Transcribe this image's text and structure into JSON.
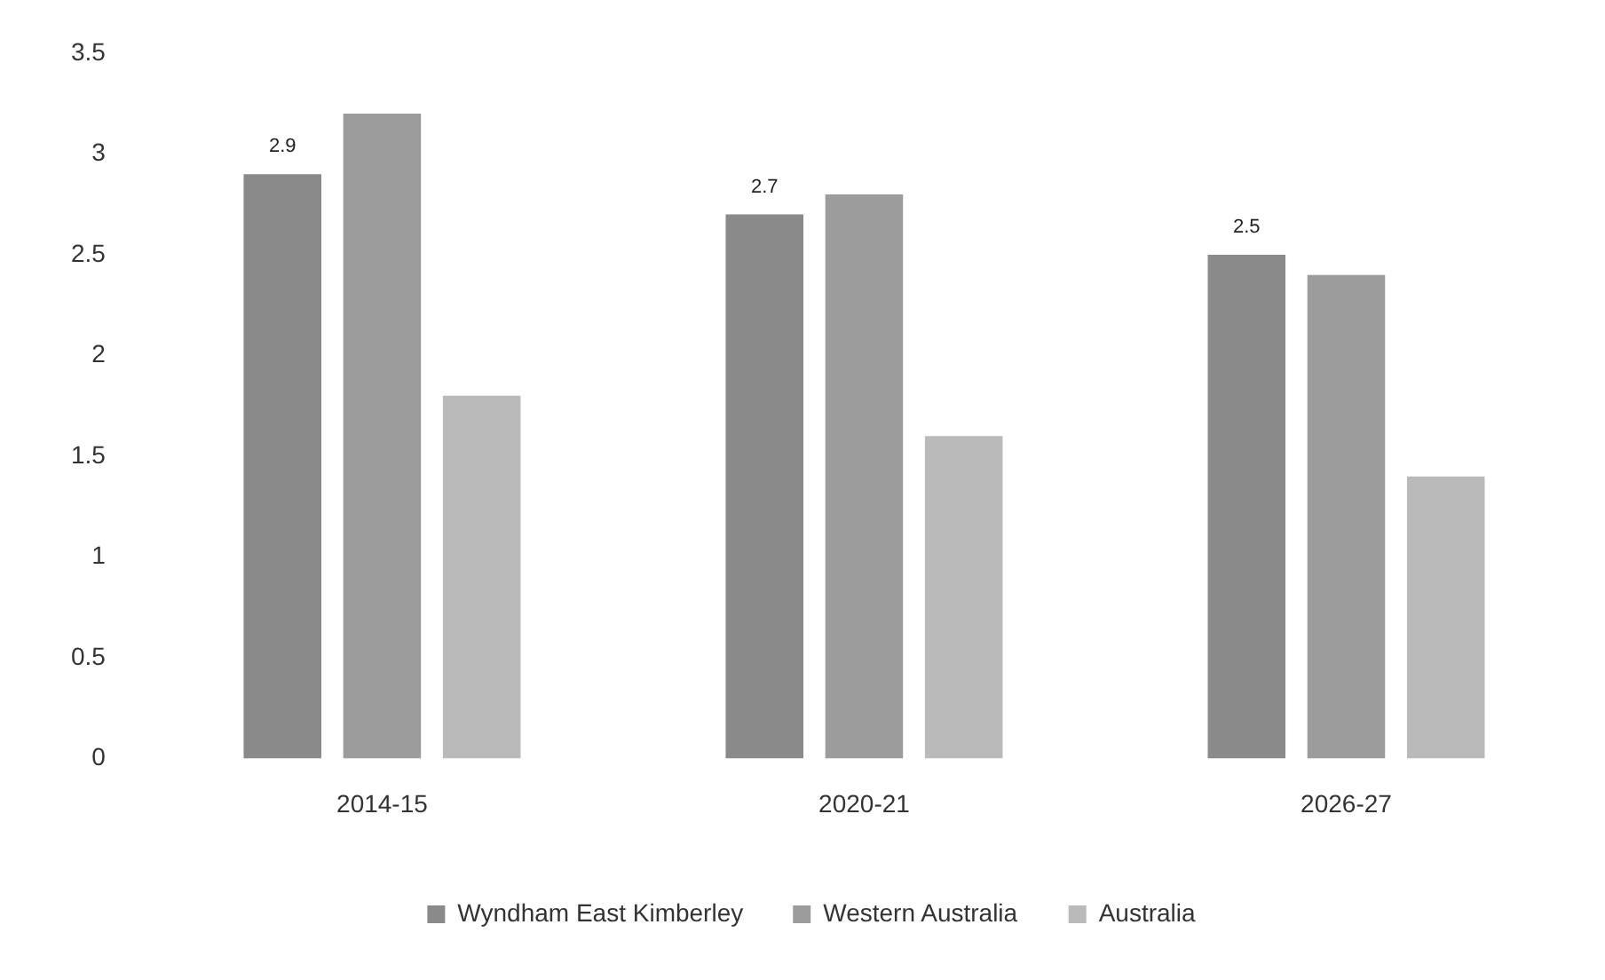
{
  "chart_data": {
    "type": "bar",
    "categories": [
      "2014-15",
      "2020-21",
      "2026-27"
    ],
    "series": [
      {
        "name": "Wyndham East Kimberley",
        "color": "#8a8a8a",
        "values": [
          2.9,
          2.7,
          2.5
        ],
        "value_labels": [
          "2.9",
          "2.7",
          "2.5"
        ]
      },
      {
        "name": "Western Australia",
        "color": "#9c9c9c",
        "values": [
          3.2,
          2.8,
          2.4
        ]
      },
      {
        "name": "Australia",
        "color": "#bababa",
        "values": [
          1.8,
          1.6,
          1.4
        ]
      }
    ],
    "ylim": [
      0,
      3.5
    ],
    "yticks": [
      0,
      0.5,
      1,
      1.5,
      2,
      2.5,
      3,
      3.5
    ],
    "grid": false,
    "legend": "bottom"
  }
}
